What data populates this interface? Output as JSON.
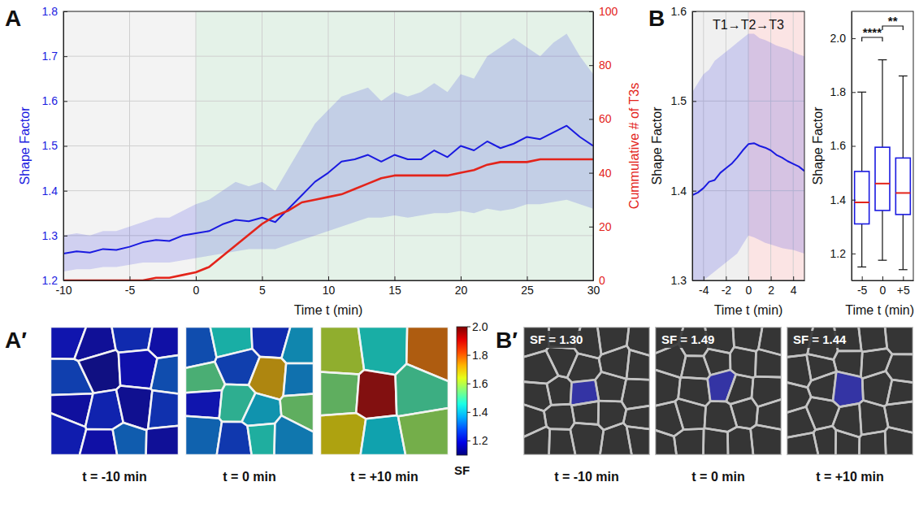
{
  "chart_data": [
    {
      "panel": "A",
      "type": "line",
      "x": [
        -10,
        -9,
        -8,
        -7,
        -6,
        -5,
        -4,
        -3,
        -2,
        -1,
        0,
        1,
        2,
        3,
        4,
        5,
        6,
        7,
        8,
        9,
        10,
        11,
        12,
        13,
        14,
        15,
        16,
        17,
        18,
        19,
        20,
        21,
        22,
        23,
        24,
        25,
        26,
        27,
        28,
        29,
        30
      ],
      "xlim": [
        -10,
        30
      ],
      "xticks": [
        -10,
        -5,
        0,
        5,
        10,
        15,
        20,
        25,
        30
      ],
      "ylim": [
        1.2,
        1.8
      ],
      "yticks": [
        1.2,
        1.3,
        1.4,
        1.5,
        1.6,
        1.7,
        1.8
      ],
      "y2lim": [
        0,
        100
      ],
      "y2ticks": [
        0,
        20,
        40,
        60,
        80,
        100
      ],
      "x_label": "Time t (min)",
      "y_label": "Shape Factor",
      "y2_label": "Cummulative # of T3s",
      "grid": true,
      "regions": [
        {
          "x": [
            -10,
            0
          ],
          "color": "#f3f3f3"
        },
        {
          "x": [
            0,
            30
          ],
          "color": "#e4f2e8"
        }
      ],
      "series": [
        {
          "color": "#1a1ae0",
          "values": [
            1.26,
            1.265,
            1.262,
            1.27,
            1.268,
            1.275,
            1.285,
            1.29,
            1.288,
            1.3,
            1.305,
            1.31,
            1.325,
            1.335,
            1.332,
            1.34,
            1.33,
            1.36,
            1.39,
            1.42,
            1.44,
            1.465,
            1.47,
            1.48,
            1.465,
            1.48,
            1.47,
            1.47,
            1.49,
            1.475,
            1.5,
            1.49,
            1.51,
            1.495,
            1.505,
            1.52,
            1.515,
            1.53,
            1.545,
            1.52,
            1.5
          ],
          "lower": [
            1.22,
            1.225,
            1.225,
            1.23,
            1.23,
            1.235,
            1.24,
            1.24,
            1.24,
            1.245,
            1.25,
            1.255,
            1.26,
            1.265,
            1.27,
            1.27,
            1.27,
            1.28,
            1.29,
            1.3,
            1.31,
            1.32,
            1.33,
            1.34,
            1.34,
            1.345,
            1.34,
            1.345,
            1.35,
            1.35,
            1.355,
            1.35,
            1.36,
            1.355,
            1.36,
            1.37,
            1.37,
            1.375,
            1.38,
            1.37,
            1.36
          ],
          "upper": [
            1.3,
            1.305,
            1.3,
            1.31,
            1.31,
            1.32,
            1.33,
            1.34,
            1.34,
            1.355,
            1.37,
            1.38,
            1.4,
            1.42,
            1.41,
            1.42,
            1.4,
            1.45,
            1.5,
            1.55,
            1.58,
            1.61,
            1.62,
            1.63,
            1.6,
            1.62,
            1.61,
            1.62,
            1.64,
            1.62,
            1.66,
            1.65,
            1.7,
            1.72,
            1.74,
            1.72,
            1.7,
            1.73,
            1.75,
            1.7,
            1.66
          ]
        },
        {
          "color": "#e3241b",
          "axis": "y2",
          "values": [
            0,
            0,
            0,
            0,
            0,
            0,
            0,
            1,
            1,
            2,
            3,
            5,
            9,
            13,
            17,
            21,
            24,
            26,
            29,
            30,
            31,
            32,
            34,
            36,
            38,
            39,
            39,
            39,
            39,
            39,
            40,
            41,
            43,
            44,
            44,
            44,
            45,
            45,
            45,
            45,
            45
          ]
        }
      ]
    },
    {
      "panel": "B",
      "type": "line",
      "title": "T1→T2→T3",
      "x": [
        -5,
        -4.5,
        -4,
        -3.5,
        -3,
        -2.5,
        -2,
        -1.5,
        -1,
        -0.5,
        0,
        0.5,
        1,
        1.5,
        2,
        2.5,
        3,
        3.5,
        4,
        4.5,
        5
      ],
      "xlim": [
        -5,
        5
      ],
      "xticks": [
        -4,
        -2,
        0,
        2,
        4
      ],
      "ylim": [
        1.3,
        1.6
      ],
      "yticks": [
        1.3,
        1.4,
        1.5,
        1.6
      ],
      "x_label": "Time t (min)",
      "y_label": "Shape Factor",
      "grid": true,
      "regions": [
        {
          "x": [
            -5,
            0
          ],
          "color": "#f0f0f0"
        },
        {
          "x": [
            0,
            5
          ],
          "color": "#fbe4e4"
        }
      ],
      "series": [
        {
          "color": "#1a1ae0",
          "values": [
            1.395,
            1.398,
            1.403,
            1.41,
            1.412,
            1.42,
            1.425,
            1.43,
            1.437,
            1.445,
            1.452,
            1.453,
            1.45,
            1.448,
            1.445,
            1.44,
            1.437,
            1.433,
            1.43,
            1.427,
            1.422
          ],
          "lower": [
            1.29,
            1.295,
            1.3,
            1.305,
            1.31,
            1.315,
            1.32,
            1.325,
            1.33,
            1.34,
            1.35,
            1.348,
            1.345,
            1.342,
            1.34,
            1.338,
            1.336,
            1.335,
            1.334,
            1.332,
            1.33
          ],
          "upper": [
            1.51,
            1.52,
            1.53,
            1.535,
            1.545,
            1.55,
            1.555,
            1.56,
            1.565,
            1.57,
            1.575,
            1.575,
            1.57,
            1.568,
            1.565,
            1.562,
            1.56,
            1.558,
            1.555,
            1.552,
            1.55
          ]
        }
      ]
    },
    {
      "type": "box",
      "categories": [
        "-5",
        "0",
        "+5"
      ],
      "x_label": "Time t (min)",
      "y_label": "Shape Factor",
      "ylim": [
        1.1,
        2.1
      ],
      "yticks": [
        1.2,
        1.4,
        1.6,
        1.8,
        {
          "value": 2,
          "label": "2.0"
        }
      ],
      "color": "#1a1ae0",
      "min": [
        1.15,
        1.175,
        1.14
      ],
      "q1": [
        1.31,
        1.36,
        1.345
      ],
      "median": [
        1.39,
        1.46,
        1.425
      ],
      "q3": [
        1.505,
        1.595,
        1.555
      ],
      "max": [
        1.8,
        1.92,
        1.86
      ],
      "significance": [
        {
          "text": "****",
          "between": [
            "-5",
            "0"
          ]
        },
        {
          "text": "**",
          "between": [
            "0",
            "+5"
          ]
        }
      ]
    }
  ],
  "image_panels": [
    {
      "panel": "A′",
      "images": [
        {
          "caption": "t = -10 min",
          "cells_sf": [
            1.22,
            1.18,
            1.25,
            1.2,
            1.28,
            1.15,
            1.21,
            1.3,
            1.19,
            1.24,
            1.17,
            1.26,
            1.23,
            1.2,
            1.32,
            1.18
          ]
        },
        {
          "caption": "t = 0 min",
          "cells_sf": [
            1.3,
            1.45,
            1.25,
            1.38,
            1.52,
            1.28,
            1.72,
            1.35,
            1.22,
            1.48,
            1.4,
            1.55,
            1.33,
            1.27,
            1.46,
            1.36
          ]
        },
        {
          "caption": "t = +10 min",
          "cells_sf": [
            1.62,
            1.45,
            1.78,
            1.55,
            1.95,
            1.5,
            1.68,
            1.42,
            1.58
          ]
        }
      ],
      "colorbar": {
        "range": [
          1.1,
          2.0
        ],
        "ticks": [
          1.2,
          1.4,
          1.6,
          1.8,
          {
            "value": 2,
            "label": "2.0"
          }
        ],
        "label": "SF"
      }
    },
    {
      "panel": "B′",
      "images": [
        {
          "caption": "t = -10 min",
          "label": "SF = 1.30"
        },
        {
          "caption": "t = 0 min",
          "label": "SF = 1.49"
        },
        {
          "caption": "t = +10 min",
          "label": "SF = 1.44"
        }
      ]
    }
  ]
}
